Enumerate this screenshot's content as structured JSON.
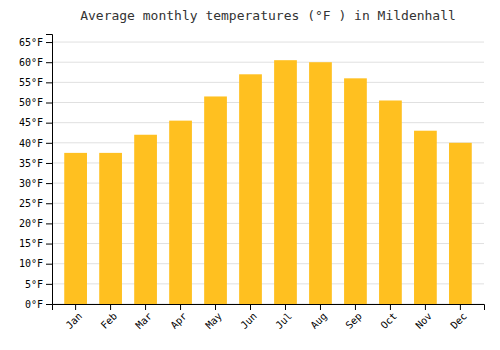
{
  "chart_data": {
    "type": "bar",
    "title": "Average monthly temperatures (°F ) in Mildenhall",
    "categories": [
      "Jan",
      "Feb",
      "Mar",
      "Apr",
      "May",
      "Jun",
      "Jul",
      "Aug",
      "Sep",
      "Oct",
      "Nov",
      "Dec"
    ],
    "values": [
      37.5,
      37.5,
      42.0,
      45.5,
      51.5,
      57.0,
      60.5,
      60.0,
      56.0,
      50.5,
      43.0,
      40.0
    ],
    "color": "#FFC020",
    "ylim": [
      0,
      67
    ],
    "yticks": [
      {
        "value": 0,
        "label": "0°F"
      },
      {
        "value": 5,
        "label": "5°F"
      },
      {
        "value": 10,
        "label": "10°F"
      },
      {
        "value": 15,
        "label": "15°F"
      },
      {
        "value": 20,
        "label": "20°F"
      },
      {
        "value": 25,
        "label": "25°F"
      },
      {
        "value": 30,
        "label": "30°F"
      },
      {
        "value": 35,
        "label": "35°F"
      },
      {
        "value": 40,
        "label": "40°F"
      },
      {
        "value": 45,
        "label": "45°F"
      },
      {
        "value": 50,
        "label": "50°F"
      },
      {
        "value": 55,
        "label": "55°F"
      },
      {
        "value": 60,
        "label": "60°F"
      },
      {
        "value": 65,
        "label": "65°F"
      }
    ],
    "grid": true
  }
}
